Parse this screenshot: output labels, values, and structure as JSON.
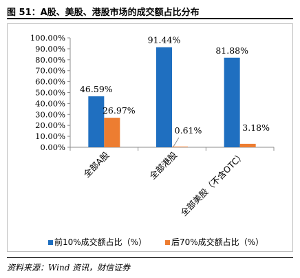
{
  "title": "图 51：A股、美股、港股市场的成交额占比分布",
  "source": "资料来源：Wind 资讯，财信证券",
  "chart_data": {
    "type": "bar",
    "categories": [
      "全部A股",
      "全部港股",
      "全部美股（不含OTC）"
    ],
    "series": [
      {
        "name": "前10%成交额占比（%）",
        "values": [
          46.59,
          91.44,
          81.88
        ],
        "labels": [
          "46.59%",
          "91.44%",
          "81.88%"
        ],
        "color": "#1f6fc0"
      },
      {
        "name": "后70%成交额占比（%）",
        "values": [
          26.97,
          0.61,
          3.18
        ],
        "labels": [
          "26.97%",
          "0.61%",
          "3.18%"
        ],
        "color": "#ed7d31"
      }
    ],
    "ylim": [
      0,
      100
    ],
    "yticks": [
      0,
      10,
      20,
      30,
      40,
      50,
      60,
      70,
      80,
      90,
      100
    ],
    "ytick_labels": [
      "0.00%",
      "10.00%",
      "20.00%",
      "30.00%",
      "40.00%",
      "50.00%",
      "60.00%",
      "70.00%",
      "80.00%",
      "90.00%",
      "100.00%"
    ],
    "grid": false,
    "legend_position": "bottom"
  }
}
